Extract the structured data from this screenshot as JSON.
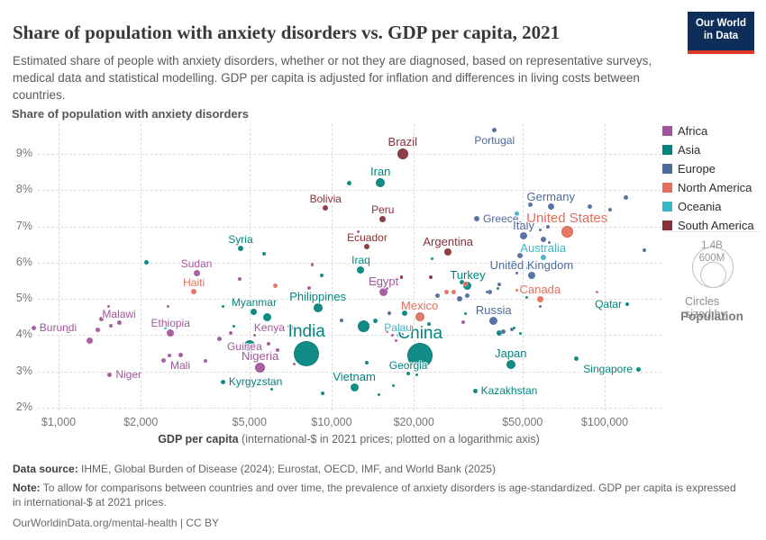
{
  "header": {
    "title": "Share of population with anxiety disorders vs. GDP per capita, 2021",
    "subtitle": "Estimated share of people with anxiety disorders, whether or not they are diagnosed, based on representative surveys, medical data and statistical modelling. GDP per capita is adjusted for inflation and differences in living costs between countries.",
    "logo_line1": "Our World",
    "logo_line2": "in Data"
  },
  "chart_data": {
    "type": "scatter",
    "x_scale": "log",
    "axis_title_y": "Share of population with anxiety disorders",
    "axis_title_x_bold": "GDP per capita",
    "axis_title_x_rest": " (international-$ in 2021 prices; plotted on a logarithmic axis)",
    "x_ticks": [
      {
        "label": "$1,000",
        "value": 1000
      },
      {
        "label": "$2,000",
        "value": 2000
      },
      {
        "label": "$5,000",
        "value": 5000
      },
      {
        "label": "$10,000",
        "value": 10000
      },
      {
        "label": "$20,000",
        "value": 20000
      },
      {
        "label": "$50,000",
        "value": 50000
      },
      {
        "label": "$100,000",
        "value": 100000
      }
    ],
    "y_ticks": [
      {
        "label": "2%",
        "value": 2
      },
      {
        "label": "3%",
        "value": 3
      },
      {
        "label": "4%",
        "value": 4
      },
      {
        "label": "5%",
        "value": 5
      },
      {
        "label": "6%",
        "value": 6
      },
      {
        "label": "7%",
        "value": 7
      },
      {
        "label": "8%",
        "value": 8
      },
      {
        "label": "9%",
        "value": 9
      }
    ],
    "colors": {
      "AF": "#a2559c",
      "AS": "#00847e",
      "EU": "#4c6a9c",
      "NA": "#e56e5a",
      "OC": "#38b6c5",
      "SA": "#883039"
    },
    "points": [
      {
        "n": "Brazil",
        "c": "SA",
        "g": 18200,
        "s": 9.0,
        "r": 6,
        "a": "above",
        "fs": 13
      },
      {
        "n": "Portugal",
        "c": "EU",
        "g": 39500,
        "s": 9.65,
        "r": 2.5,
        "a": "below",
        "fs": 12
      },
      {
        "n": "Iran",
        "c": "AS",
        "g": 15100,
        "s": 8.2,
        "r": 5,
        "a": "above",
        "fs": 13
      },
      {
        "n": "Germany",
        "c": "EU",
        "g": 63500,
        "s": 7.55,
        "r": 3.5,
        "a": "above",
        "fs": 13
      },
      {
        "n": "Greece",
        "c": "EU",
        "g": 34000,
        "s": 7.2,
        "r": 3,
        "a": "right",
        "fs": 12
      },
      {
        "n": "Italy",
        "c": "EU",
        "g": 50500,
        "s": 6.75,
        "r": 4,
        "a": "above",
        "fs": 13
      },
      {
        "n": "United States",
        "c": "NA",
        "g": 72800,
        "s": 6.85,
        "r": 6.7,
        "a": "above",
        "fs": 15
      },
      {
        "n": "Australia",
        "c": "OC",
        "g": 59500,
        "s": 6.15,
        "r": 3,
        "a": "above",
        "fs": 13
      },
      {
        "n": "United Kingdom",
        "c": "EU",
        "g": 54000,
        "s": 5.65,
        "r": 4,
        "a": "above",
        "fs": 13
      },
      {
        "n": "Argentina",
        "c": "SA",
        "g": 26700,
        "s": 6.3,
        "r": 4,
        "a": "above",
        "fs": 13
      },
      {
        "n": "Turkey",
        "c": "AS",
        "g": 31500,
        "s": 5.35,
        "r": 4.5,
        "a": "above",
        "fs": 13
      },
      {
        "n": "Canada",
        "c": "NA",
        "g": 58000,
        "s": 5.0,
        "r": 3.5,
        "a": "above",
        "fs": 13
      },
      {
        "n": "Qatar",
        "c": "AS",
        "g": 121000,
        "s": 4.85,
        "r": 2,
        "a": "left",
        "fs": 12
      },
      {
        "n": "Russia",
        "c": "EU",
        "g": 39200,
        "s": 4.4,
        "r": 4.5,
        "a": "above",
        "fs": 13
      },
      {
        "n": "Mexico",
        "c": "NA",
        "g": 21000,
        "s": 4.5,
        "r": 5,
        "a": "above",
        "fs": 13
      },
      {
        "n": "Japan",
        "c": "AS",
        "g": 45300,
        "s": 3.2,
        "r": 5,
        "a": "above",
        "fs": 13
      },
      {
        "n": "Kazakhstan",
        "c": "AS",
        "g": 33500,
        "s": 2.45,
        "r": 2.5,
        "a": "right",
        "fs": 12
      },
      {
        "n": "Singapore",
        "c": "AS",
        "g": 133000,
        "s": 3.05,
        "r": 2.5,
        "a": "left",
        "fs": 12
      },
      {
        "n": "Georgia",
        "c": "AS",
        "g": 19100,
        "s": 2.95,
        "r": 2,
        "a": "above",
        "fs": 12
      },
      {
        "n": "China",
        "c": "AS",
        "g": 21100,
        "s": 3.45,
        "r": 14,
        "a": "above",
        "fs": 19
      },
      {
        "n": "India",
        "c": "AS",
        "g": 8100,
        "s": 3.5,
        "r": 14,
        "a": "above",
        "fs": 19
      },
      {
        "n": "Vietnam",
        "c": "AS",
        "g": 12100,
        "s": 2.55,
        "r": 4.5,
        "a": "above",
        "fs": 13
      },
      {
        "n": "Kyrgyzstan",
        "c": "AS",
        "g": 4000,
        "s": 2.7,
        "r": 2.5,
        "a": "right",
        "fs": 12
      },
      {
        "n": "Nigeria",
        "c": "AF",
        "g": 5470,
        "s": 3.1,
        "r": 5.5,
        "a": "above",
        "fs": 13
      },
      {
        "n": "Kenya",
        "c": "AF",
        "g": 7100,
        "s": 4.2,
        "r": 3,
        "a": "left",
        "fs": 12
      },
      {
        "n": "Guinea",
        "c": "AF",
        "g": 4800,
        "s": 3.45,
        "r": 2.5,
        "a": "above",
        "fs": 12
      },
      {
        "n": "Mali",
        "c": "AF",
        "g": 2790,
        "s": 3.45,
        "r": 2.5,
        "a": "below",
        "fs": 12
      },
      {
        "n": "Niger",
        "c": "AF",
        "g": 1540,
        "s": 2.9,
        "r": 2.5,
        "a": "right",
        "fs": 12
      },
      {
        "n": "Malawi",
        "c": "AF",
        "g": 1665,
        "s": 4.35,
        "r": 2.5,
        "a": "above",
        "fs": 12
      },
      {
        "n": "Burundi",
        "c": "AF",
        "g": 810,
        "s": 4.2,
        "r": 2.5,
        "a": "right",
        "fs": 12
      },
      {
        "n": "Ethiopia",
        "c": "AF",
        "g": 2570,
        "s": 4.05,
        "r": 4,
        "a": "above",
        "fs": 12
      },
      {
        "n": "Sudan",
        "c": "AF",
        "g": 3200,
        "s": 5.7,
        "r": 3.5,
        "a": "above",
        "fs": 12
      },
      {
        "n": "Haiti",
        "c": "NA",
        "g": 3130,
        "s": 5.2,
        "r": 3,
        "a": "above",
        "fs": 12
      },
      {
        "n": "Syria",
        "c": "AS",
        "g": 4640,
        "s": 6.4,
        "r": 3,
        "a": "above",
        "fs": 12
      },
      {
        "n": "Bolivia",
        "c": "SA",
        "g": 9500,
        "s": 7.5,
        "r": 3,
        "a": "above",
        "fs": 12
      },
      {
        "n": "Peru",
        "c": "SA",
        "g": 15400,
        "s": 7.2,
        "r": 3.5,
        "a": "above",
        "fs": 12
      },
      {
        "n": "Ecuador",
        "c": "SA",
        "g": 13500,
        "s": 6.45,
        "r": 3,
        "a": "above",
        "fs": 12
      },
      {
        "n": "Iraq",
        "c": "AS",
        "g": 12800,
        "s": 5.8,
        "r": 4,
        "a": "above",
        "fs": 12
      },
      {
        "n": "Egypt",
        "c": "AF",
        "g": 15500,
        "s": 5.2,
        "r": 4.5,
        "a": "above",
        "fs": 13
      },
      {
        "n": "Myanmar",
        "c": "AS",
        "g": 5200,
        "s": 4.65,
        "r": 3.5,
        "a": "above",
        "fs": 12
      },
      {
        "n": "Philippines",
        "c": "AS",
        "g": 8900,
        "s": 4.75,
        "r": 5,
        "a": "above",
        "fs": 13
      },
      {
        "n": "Palau",
        "c": "OC",
        "g": 17500,
        "s": 4.0,
        "r": 1.5,
        "a": "above",
        "fs": 12
      },
      {
        "c": "AF",
        "g": 1090,
        "s": 4.1,
        "r": 2
      },
      {
        "c": "AF",
        "g": 1430,
        "s": 4.45,
        "r": 2.5
      },
      {
        "c": "AF",
        "g": 1550,
        "s": 4.25,
        "r": 2
      },
      {
        "c": "AF",
        "g": 1390,
        "s": 4.15,
        "r": 2.5
      },
      {
        "c": "AF",
        "g": 1295,
        "s": 3.85,
        "r": 3.5
      },
      {
        "c": "AF",
        "g": 1520,
        "s": 4.8,
        "r": 1.5
      },
      {
        "c": "AF",
        "g": 2510,
        "s": 4.8,
        "r": 1.5
      },
      {
        "c": "AF",
        "g": 2415,
        "s": 3.3,
        "r": 2.5
      },
      {
        "c": "AF",
        "g": 2550,
        "s": 3.45,
        "r": 2
      },
      {
        "c": "AF",
        "g": 3450,
        "s": 3.3,
        "r": 2
      },
      {
        "c": "AF",
        "g": 3870,
        "s": 3.9,
        "r": 2.5
      },
      {
        "c": "AF",
        "g": 4270,
        "s": 4.05,
        "r": 2
      },
      {
        "c": "AF",
        "g": 4620,
        "s": 5.55,
        "r": 2
      },
      {
        "c": "AF",
        "g": 5230,
        "s": 4.0,
        "r": 1.5
      },
      {
        "c": "AF",
        "g": 5880,
        "s": 3.75,
        "r": 2
      },
      {
        "c": "AF",
        "g": 6350,
        "s": 3.6,
        "r": 2
      },
      {
        "c": "AF",
        "g": 6380,
        "s": 3.35,
        "r": 1.5
      },
      {
        "c": "AF",
        "g": 7300,
        "s": 3.2,
        "r": 1.5
      },
      {
        "c": "AF",
        "g": 8300,
        "s": 5.3,
        "r": 2
      },
      {
        "c": "AF",
        "g": 8500,
        "s": 5.95,
        "r": 1.7
      },
      {
        "c": "AF",
        "g": 12500,
        "s": 6.85,
        "r": 1.5
      },
      {
        "c": "AF",
        "g": 14600,
        "s": 5.45,
        "r": 2.7
      },
      {
        "c": "AF",
        "g": 16000,
        "s": 5.3,
        "r": 1.5
      },
      {
        "c": "AF",
        "g": 16700,
        "s": 4.0,
        "r": 1.7
      },
      {
        "c": "AF",
        "g": 15900,
        "s": 4.1,
        "r": 1.5
      },
      {
        "c": "AF",
        "g": 17200,
        "s": 3.85,
        "r": 1.5
      },
      {
        "c": "AF",
        "g": 30300,
        "s": 4.35,
        "r": 2.2
      },
      {
        "c": "AF",
        "g": 6230,
        "s": 3.4,
        "r": 1.5
      },
      {
        "c": "AS",
        "g": 2100,
        "s": 6.0,
        "r": 2.5
      },
      {
        "c": "AS",
        "g": 5650,
        "s": 6.25,
        "r": 2
      },
      {
        "c": "AS",
        "g": 9200,
        "s": 5.65,
        "r": 2
      },
      {
        "c": "AS",
        "g": 11600,
        "s": 8.2,
        "r": 2.5
      },
      {
        "c": "AS",
        "g": 23400,
        "s": 6.1,
        "r": 1.5
      },
      {
        "c": "AS",
        "g": 18500,
        "s": 4.6,
        "r": 3
      },
      {
        "c": "AS",
        "g": 14500,
        "s": 4.4,
        "r": 2.5
      },
      {
        "c": "AS",
        "g": 13100,
        "s": 4.25,
        "r": 6.5
      },
      {
        "c": "AS",
        "g": 22800,
        "s": 4.3,
        "r": 2
      },
      {
        "c": "AS",
        "g": 31000,
        "s": 4.6,
        "r": 1.5
      },
      {
        "c": "AS",
        "g": 41000,
        "s": 4.05,
        "r": 3
      },
      {
        "c": "AS",
        "g": 46500,
        "s": 4.2,
        "r": 1.5
      },
      {
        "c": "AS",
        "g": 49000,
        "s": 4.05,
        "r": 1.5
      },
      {
        "c": "AS",
        "g": 5000,
        "s": 3.7,
        "r": 6
      },
      {
        "c": "AS",
        "g": 5800,
        "s": 4.5,
        "r": 4.5
      },
      {
        "c": "AS",
        "g": 4000,
        "s": 4.8,
        "r": 1.5
      },
      {
        "c": "AS",
        "g": 4400,
        "s": 4.25,
        "r": 1.5
      },
      {
        "c": "AS",
        "g": 13500,
        "s": 3.25,
        "r": 2
      },
      {
        "c": "AS",
        "g": 16800,
        "s": 2.6,
        "r": 1.5
      },
      {
        "c": "AS",
        "g": 14900,
        "s": 2.35,
        "r": 1.5
      },
      {
        "c": "AS",
        "g": 9300,
        "s": 2.4,
        "r": 2
      },
      {
        "c": "AS",
        "g": 6050,
        "s": 2.5,
        "r": 1.5
      },
      {
        "c": "AS",
        "g": 20500,
        "s": 2.9,
        "r": 1.5
      },
      {
        "c": "AS",
        "g": 79000,
        "s": 3.35,
        "r": 2.5
      },
      {
        "c": "AS",
        "g": 30000,
        "s": 5.45,
        "r": 2.5
      },
      {
        "c": "AS",
        "g": 40500,
        "s": 5.3,
        "r": 1.5
      },
      {
        "c": "AS",
        "g": 52000,
        "s": 5.05,
        "r": 1.5
      },
      {
        "c": "EU",
        "g": 53500,
        "s": 7.6,
        "r": 2.5
      },
      {
        "c": "EU",
        "g": 88000,
        "s": 7.55,
        "r": 2.5
      },
      {
        "c": "EU",
        "g": 105000,
        "s": 7.45,
        "r": 2
      },
      {
        "c": "EU",
        "g": 120000,
        "s": 7.8,
        "r": 2.5
      },
      {
        "c": "EU",
        "g": 140000,
        "s": 6.35,
        "r": 2
      },
      {
        "c": "EU",
        "g": 62000,
        "s": 7.0,
        "r": 2
      },
      {
        "c": "EU",
        "g": 58000,
        "s": 6.9,
        "r": 1.5
      },
      {
        "c": "EU",
        "g": 59500,
        "s": 6.65,
        "r": 3
      },
      {
        "c": "EU",
        "g": 62500,
        "s": 6.55,
        "r": 1.5
      },
      {
        "c": "EU",
        "g": 49000,
        "s": 7.1,
        "r": 1.5
      },
      {
        "c": "EU",
        "g": 49000,
        "s": 6.2,
        "r": 3
      },
      {
        "c": "EU",
        "g": 46500,
        "s": 5.95,
        "r": 4
      },
      {
        "c": "EU",
        "g": 52500,
        "s": 5.85,
        "r": 2.5
      },
      {
        "c": "EU",
        "g": 45000,
        "s": 6.0,
        "r": 1.5
      },
      {
        "c": "EU",
        "g": 44000,
        "s": 5.9,
        "r": 2.5
      },
      {
        "c": "EU",
        "g": 38000,
        "s": 5.2,
        "r": 2.5
      },
      {
        "c": "EU",
        "g": 31500,
        "s": 5.1,
        "r": 2.5
      },
      {
        "c": "EU",
        "g": 29500,
        "s": 5.0,
        "r": 3
      },
      {
        "c": "EU",
        "g": 24500,
        "s": 5.1,
        "r": 2.5
      },
      {
        "c": "EU",
        "g": 37000,
        "s": 5.2,
        "r": 1.5
      },
      {
        "c": "EU",
        "g": 41000,
        "s": 5.4,
        "r": 2
      },
      {
        "c": "EU",
        "g": 16300,
        "s": 4.6,
        "r": 2
      },
      {
        "c": "EU",
        "g": 10900,
        "s": 4.4,
        "r": 2
      },
      {
        "c": "EU",
        "g": 58000,
        "s": 4.8,
        "r": 1.5
      },
      {
        "c": "EU",
        "g": 47500,
        "s": 5.7,
        "r": 1.5
      },
      {
        "c": "EU",
        "g": 42500,
        "s": 4.1,
        "r": 2.5
      },
      {
        "c": "EU",
        "g": 45600,
        "s": 4.15,
        "r": 2
      },
      {
        "c": "EU",
        "g": 18100,
        "s": 4.0,
        "r": 2
      },
      {
        "c": "NA",
        "g": 6200,
        "s": 5.35,
        "r": 2.5
      },
      {
        "c": "NA",
        "g": 7100,
        "s": 5.05,
        "r": 2
      },
      {
        "c": "NA",
        "g": 26300,
        "s": 5.2,
        "r": 2.5
      },
      {
        "c": "NA",
        "g": 27900,
        "s": 5.2,
        "r": 2.5
      },
      {
        "c": "NA",
        "g": 31000,
        "s": 5.4,
        "r": 2.5
      },
      {
        "c": "NA",
        "g": 47500,
        "s": 5.25,
        "r": 1.5
      },
      {
        "c": "NA",
        "g": 66000,
        "s": 6.0,
        "r": 1.7
      },
      {
        "c": "NA",
        "g": 94000,
        "s": 5.2,
        "r": 1.5
      },
      {
        "c": "SA",
        "g": 23000,
        "s": 5.6,
        "r": 2
      },
      {
        "c": "SA",
        "g": 18000,
        "s": 5.6,
        "r": 1.7
      },
      {
        "c": "OC",
        "g": 47700,
        "s": 7.35,
        "r": 2.5
      },
      {
        "c": "OC",
        "g": 7000,
        "s": 4.25,
        "r": 1.7
      },
      {
        "c": "OC",
        "g": 2470,
        "s": 4.2,
        "r": 1.5
      }
    ]
  },
  "legend": {
    "items": [
      {
        "label": "Africa",
        "color": "#a2559c"
      },
      {
        "label": "Asia",
        "color": "#00847e"
      },
      {
        "label": "Europe",
        "color": "#4c6a9c"
      },
      {
        "label": "North America",
        "color": "#e56e5a"
      },
      {
        "label": "Oceania",
        "color": "#38b6c5"
      },
      {
        "label": "South America",
        "color": "#883039"
      }
    ],
    "size_legend": {
      "big_label": "1.4B",
      "small_label": "600M",
      "caption": "Circles sized by",
      "caption_bold": "Population"
    }
  },
  "footer": {
    "datasource_label": "Data source:",
    "datasource_text": "IHME, Global Burden of Disease (2024); Eurostat, OECD, IMF, and World Bank (2025)",
    "note_label": "Note:",
    "note_text": "To allow for comparisons between countries and over time, the prevalence of anxiety disorders is age-standardized. GDP per capita is expressed in international-$ at 2021 prices.",
    "link": "OurWorldinData.org/mental-health | CC BY"
  }
}
